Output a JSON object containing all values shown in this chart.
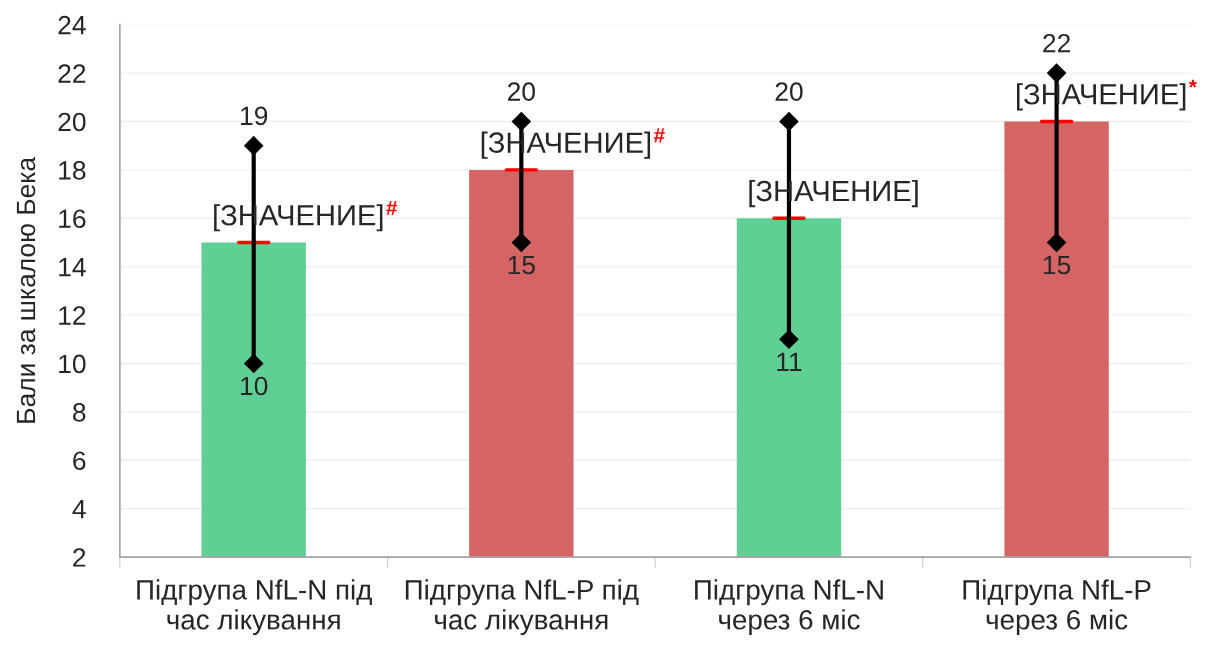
{
  "chart_data": {
    "type": "bar",
    "ylabel": "Бали за шкалою Бека",
    "categories": [
      "Підгрупа NfL-N під\nчас лікування",
      "Підгрупа NfL-P під\nчас лікування",
      "Підгрупа NfL-N\nчерез 6 міс",
      "Підгрупа NfL-P\nчерез 6 міс"
    ],
    "series": [
      {
        "colors": [
          "#5fcf93",
          "#d56565",
          "#5fcf93",
          "#d56565"
        ],
        "values": [
          15,
          18,
          16,
          20
        ],
        "value_labels": [
          "[ЗНАЧЕНИЕ]$^{#}$",
          "[ЗНАЧЕНИЕ]$^{#}$",
          "[ЗНАЧЕНИЕ]",
          "[ЗНАЧЕНИЕ]$^{*}$"
        ]
      },
      {
        "type": "line",
        "x": [
          "Підгрупа NfL-N під\nчас лікування",
          "Підгрупа NfL-N під\nчас лікування"
        ],
        "values": [
          10,
          19
        ],
        "color": "#000000",
        "marker": "diamond",
        "data_labels": true
      },
      {
        "type": "line",
        "x": [
          "Підгрупа NfL-P під\nчас лікування",
          "Підгрупа NfL-P під\nчас лікування"
        ],
        "values": [
          15,
          20
        ],
        "color": "#000000",
        "marker": "diamond",
        "data_labels": true
      },
      {
        "type": "line",
        "x": [
          "Підгрупа NfL-N\nчерез 6 міс",
          "Підгрупа NfL-N\nчерез 6 міс"
        ],
        "values": [
          11,
          20
        ],
        "color": "#000000",
        "marker": "diamond",
        "data_labels": true
      },
      {
        "type": "line",
        "x": [
          "Підгрупа NfL-P\nчерез 6 міс",
          "Підгрупа NfL-P\nчерез 6 міс"
        ],
        "values": [
          15,
          22
        ],
        "color": "#000000",
        "marker": "diamond",
        "data_labels": true
      }
    ],
    "ylim": [
      2,
      24
    ],
    "yticks": [
      2,
      4,
      6,
      8,
      10,
      12,
      14,
      16,
      18,
      20,
      22,
      24
    ],
    "grid": "y"
  }
}
